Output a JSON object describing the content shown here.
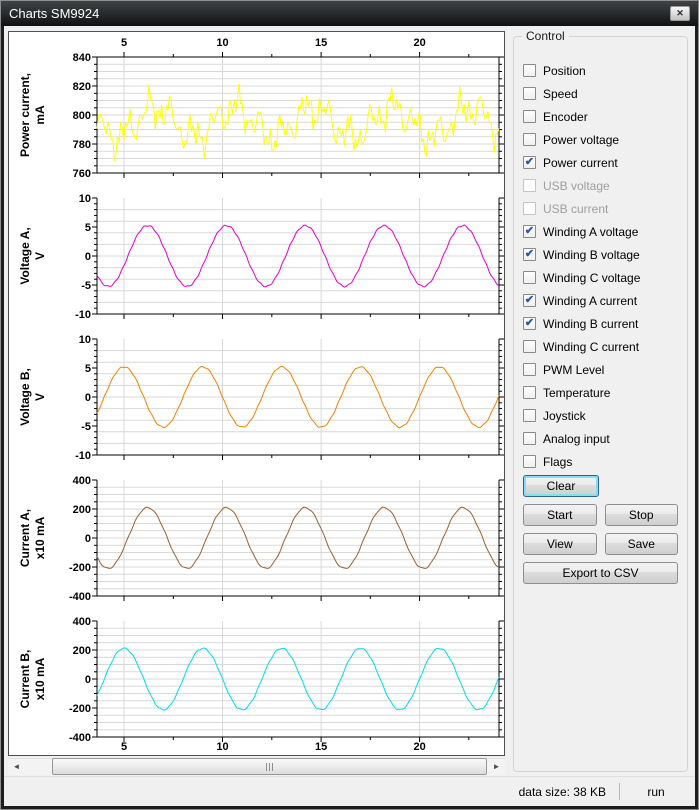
{
  "window": {
    "title": "Charts SM9924"
  },
  "icons": {
    "close": "✕",
    "scroll_left": "◄",
    "scroll_right": "►",
    "check": "✔"
  },
  "control": {
    "label": "Control",
    "checkboxes": [
      {
        "label": "Position",
        "checked": false,
        "enabled": true
      },
      {
        "label": "Speed",
        "checked": false,
        "enabled": true
      },
      {
        "label": "Encoder",
        "checked": false,
        "enabled": true
      },
      {
        "label": "Power voltage",
        "checked": false,
        "enabled": true
      },
      {
        "label": "Power current",
        "checked": true,
        "enabled": true
      },
      {
        "label": "USB voltage",
        "checked": false,
        "enabled": false
      },
      {
        "label": "USB current",
        "checked": false,
        "enabled": false
      },
      {
        "label": "Winding A voltage",
        "checked": true,
        "enabled": true
      },
      {
        "label": "Winding B voltage",
        "checked": true,
        "enabled": true
      },
      {
        "label": "Winding C voltage",
        "checked": false,
        "enabled": true
      },
      {
        "label": "Winding A current",
        "checked": true,
        "enabled": true
      },
      {
        "label": "Winding B current",
        "checked": true,
        "enabled": true
      },
      {
        "label": "Winding C current",
        "checked": false,
        "enabled": true
      },
      {
        "label": "PWM Level",
        "checked": false,
        "enabled": true
      },
      {
        "label": "Temperature",
        "checked": false,
        "enabled": true
      },
      {
        "label": "Joystick",
        "checked": false,
        "enabled": true
      },
      {
        "label": "Analog input",
        "checked": false,
        "enabled": true
      },
      {
        "label": "Flags",
        "checked": false,
        "enabled": true
      }
    ],
    "buttons": {
      "clear": "Clear",
      "start": "Start",
      "stop": "Stop",
      "view": "View",
      "save": "Save",
      "export_csv": "Export to CSV"
    }
  },
  "statusbar": {
    "data_size": "data size: 38 KB",
    "run_state": "run"
  },
  "chart_axes": {
    "x_range": [
      3.63,
      24.03
    ],
    "xticks_major": [
      5,
      10,
      15,
      20
    ],
    "xticks_minor": [
      7.5,
      12.5,
      17.5,
      22.5
    ],
    "sample_step": 0.08,
    "grid_color": "#d9d9d9",
    "axis_color": "#000000"
  },
  "chart_data": [
    {
      "type": "line",
      "name": "power-current",
      "title_lines": [
        "Power current,",
        "mA"
      ],
      "color": "#ffff00",
      "ylim": [
        760,
        840
      ],
      "ytick_major": 20,
      "ytick_minor": 5,
      "grid_step": 5,
      "signal": {
        "base": 795,
        "components": [
          {
            "amp": 10,
            "period": 4,
            "x0": 1.6
          },
          {
            "amp": 7,
            "period": 1.13,
            "x0": 0.3
          },
          {
            "amp": 6,
            "period": 0.507,
            "x0": 0.1
          },
          {
            "amp": 4,
            "period": 0.229,
            "x0": 0.0
          },
          {
            "amp": 3,
            "period": 0.1313,
            "x0": 0.05
          }
        ]
      }
    },
    {
      "type": "line",
      "name": "voltage-a",
      "title_lines": [
        "Voltage A,",
        "V"
      ],
      "color": "#e000c8",
      "ylim": [
        -10,
        10
      ],
      "ytick_major": 5,
      "ytick_minor": 1,
      "grid_step": 2,
      "signal": {
        "base": 0,
        "components": [
          {
            "amp": 5.25,
            "period": 4,
            "x0": 5.2
          },
          {
            "amp": 0.12,
            "period": 0.37,
            "x0": 0.0
          }
        ]
      }
    },
    {
      "type": "line",
      "name": "voltage-b",
      "title_lines": [
        "Voltage B,",
        "V"
      ],
      "color": "#ef8200",
      "ylim": [
        -10,
        10
      ],
      "ytick_major": 5,
      "ytick_minor": 1,
      "grid_step": 2,
      "signal": {
        "base": 0,
        "components": [
          {
            "amp": 5.2,
            "period": 4,
            "x0": 4.0
          },
          {
            "amp": 0.1,
            "period": 0.41,
            "x0": 0.2
          }
        ]
      }
    },
    {
      "type": "line",
      "name": "current-a",
      "title_lines": [
        "Current A,",
        "x10 mA"
      ],
      "color": "#9a6030",
      "ylim": [
        -400,
        400
      ],
      "ytick_major": 200,
      "ytick_minor": 50,
      "grid_step": 50,
      "signal": {
        "base": 0,
        "components": [
          {
            "amp": 210,
            "period": 4,
            "x0": 5.2
          },
          {
            "amp": 4,
            "period": 0.5,
            "x0": 0.0
          }
        ]
      }
    },
    {
      "type": "line",
      "name": "current-b",
      "title_lines": [
        "Current B,",
        "x10 mA"
      ],
      "color": "#00dce8",
      "ylim": [
        -400,
        400
      ],
      "ytick_major": 200,
      "ytick_minor": 50,
      "grid_step": 50,
      "signal": {
        "base": 0,
        "components": [
          {
            "amp": 212,
            "period": 4,
            "x0": 4.0
          },
          {
            "amp": 4,
            "period": 0.45,
            "x0": 0.0
          }
        ]
      }
    }
  ]
}
